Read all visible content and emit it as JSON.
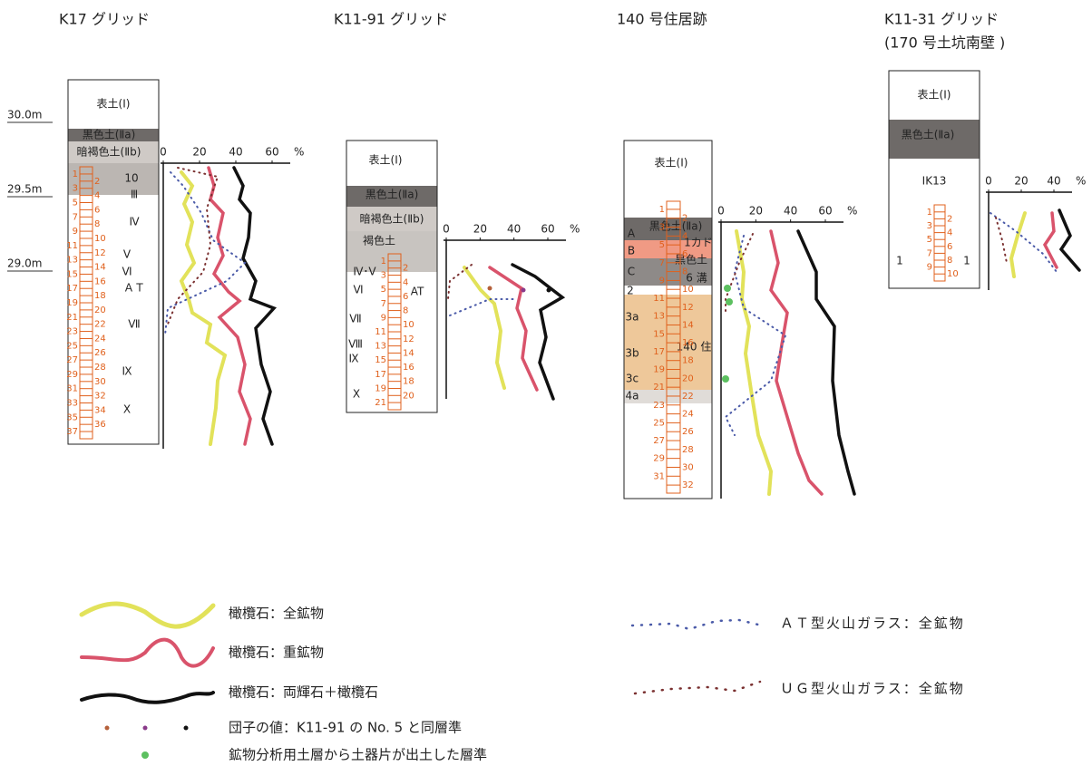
{
  "elevations": [
    "30.0m",
    "29.5m",
    "29.0m"
  ],
  "sections": [
    {
      "title": "K17 グリッド",
      "layers": [
        "表土(Ⅰ)",
        "黒色土(Ⅱa)",
        "暗褐色土(Ⅱb)",
        "10",
        "Ⅲ",
        "Ⅳ",
        "Ⅴ",
        "Ⅵ",
        "ＡＴ",
        "Ⅶ",
        "Ⅸ",
        "Ⅹ"
      ],
      "sample_numbers": [
        1,
        2,
        3,
        4,
        5,
        6,
        7,
        8,
        9,
        10,
        11,
        12,
        13,
        14,
        15,
        16,
        17,
        18,
        19,
        20,
        21,
        22,
        23,
        24,
        25,
        26,
        27,
        28,
        29,
        30,
        31,
        32,
        33,
        34,
        35,
        36,
        37
      ],
      "ticks": [
        0,
        20,
        40,
        60
      ],
      "unit": "%"
    },
    {
      "title": "K11-91 グリッド",
      "layers": [
        "表土(Ⅰ)",
        "黒色土(Ⅱa)",
        "暗褐色土(Ⅱb)",
        "褐色土",
        "Ⅳ･Ⅴ",
        "Ⅵ",
        "AT",
        "Ⅶ",
        "Ⅷ",
        "Ⅸ",
        "Ⅹ"
      ],
      "sample_numbers": [
        1,
        2,
        3,
        4,
        5,
        6,
        7,
        8,
        9,
        10,
        11,
        12,
        13,
        14,
        15,
        16,
        17,
        18,
        19,
        20,
        21
      ],
      "ticks": [
        0,
        20,
        40,
        60
      ],
      "unit": "%"
    },
    {
      "title": "140 号住居跡",
      "layers": [
        "表土(Ⅰ)",
        "黒色土(Ⅱa)",
        "A",
        "B",
        "1カド",
        "C",
        "黒色土",
        "6 溝",
        "2",
        "3a",
        "3b",
        "140 住",
        "3c",
        "4a"
      ],
      "sample_numbers": [
        1,
        2,
        3,
        4,
        5,
        6,
        7,
        8,
        9,
        10,
        11,
        12,
        13,
        14,
        15,
        16,
        17,
        18,
        19,
        20,
        21,
        22,
        23,
        24,
        25,
        26,
        27,
        28,
        29,
        30,
        31,
        32
      ],
      "ticks": [
        0,
        20,
        40,
        60
      ],
      "unit": "%"
    },
    {
      "title": "K11-31 グリッド",
      "subtitle": "(170 号土坑南壁 )",
      "layers": [
        "表土(Ⅰ)",
        "黒色土(Ⅱa)",
        "IK13",
        "1",
        "1"
      ],
      "sample_numbers": [
        1,
        2,
        3,
        4,
        5,
        6,
        7,
        8,
        9,
        10
      ],
      "ticks": [
        0,
        20,
        40
      ],
      "unit": "%"
    }
  ],
  "legend": {
    "olivine_all": "橄欖石：全鉱物",
    "olivine_heavy": "橄欖石：重鉱物",
    "olivine_px": "橄欖石：両輝石＋橄欖石",
    "dango": "団子の値：K11-91 の No. 5 と同層準",
    "sherd": "鉱物分析用土層から土器片が出土した層準",
    "at_glass": "ＡＴ型火山ガラス：全鉱物",
    "ug_glass": "ＵＧ型火山ガラス：全鉱物"
  }
}
